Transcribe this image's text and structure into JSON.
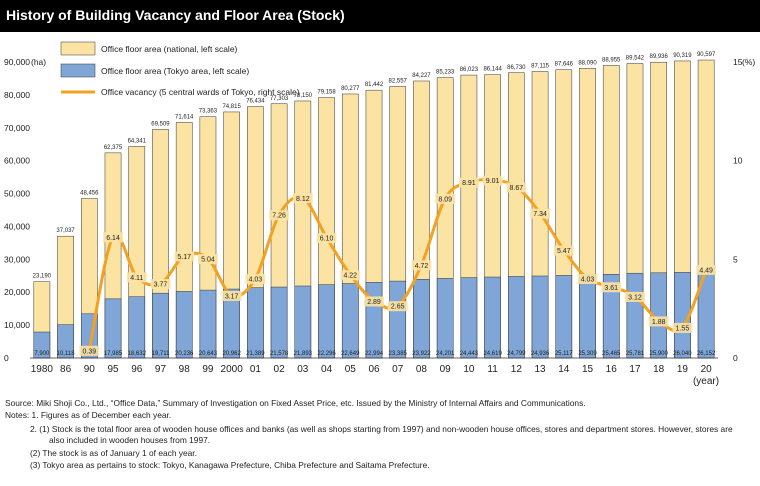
{
  "title": "History of Building Vacancy and Floor Area (Stock)",
  "chart_data": {
    "type": "bar",
    "left_unit": "(ha)",
    "right_unit": "(%)",
    "left_ticks": [
      "0",
      "10,000",
      "20,000",
      "30,000",
      "40,000",
      "50,000",
      "60,000",
      "70,000",
      "80,000",
      "90,000"
    ],
    "left_ylim": [
      0,
      90000
    ],
    "right_ticks": [
      "0",
      "5",
      "10",
      "15"
    ],
    "right_ylim": [
      0,
      15
    ],
    "categories": [
      "1980",
      "86",
      "90",
      "95",
      "96",
      "97",
      "98",
      "99",
      "2000",
      "01",
      "02",
      "03",
      "04",
      "05",
      "06",
      "07",
      "08",
      "09",
      "10",
      "11",
      "12",
      "13",
      "14",
      "15",
      "16",
      "17",
      "18",
      "19",
      "20"
    ],
    "x_unit": "(year)",
    "series": [
      {
        "name": "Office floor area (national, left scale)",
        "color": "#FBE3A4",
        "values": [
          23190,
          37037,
          48456,
          62375,
          64341,
          69509,
          71614,
          73363,
          74815,
          76434,
          77303,
          78150,
          79158,
          80277,
          81442,
          82557,
          84227,
          85233,
          86023,
          86144,
          86730,
          87115,
          87646,
          88090,
          88955,
          89542,
          89936,
          90319,
          90597
        ]
      },
      {
        "name": "Office floor area (Tokyo area, left scale)",
        "color": "#80A6D8",
        "values": [
          7900,
          10118,
          13444,
          17985,
          18632,
          19711,
          20236,
          20643,
          20962,
          21389,
          21578,
          21893,
          22296,
          22649,
          22994,
          23385,
          23922,
          24201,
          24443,
          24619,
          24799,
          24936,
          25117,
          25309,
          25465,
          25781,
          25900,
          26040,
          26152
        ]
      },
      {
        "name": "Office vacancy (5 central wards of Tokyo, right scale)",
        "color": "#F4A11F",
        "values": [
          null,
          null,
          0.39,
          6.14,
          4.11,
          3.77,
          5.17,
          5.04,
          3.17,
          4.03,
          7.26,
          8.12,
          6.1,
          4.22,
          2.89,
          2.65,
          4.72,
          8.09,
          8.91,
          9.01,
          8.67,
          7.34,
          5.47,
          4.03,
          3.61,
          3.12,
          1.88,
          1.55,
          4.49
        ],
        "labels": [
          "",
          "",
          "0.39",
          "6.14",
          "4.11",
          "3.77",
          "5.17",
          "5.04",
          "3.17",
          "4.03",
          "7.26",
          "8.12",
          "6.10",
          "4.22",
          "2.89",
          "2.65",
          "4.72",
          "8.09",
          "8.91",
          "9.01",
          "8.67",
          "7.34",
          "5.47",
          "4.03",
          "3.61",
          "3.12",
          "1.88",
          "1.55",
          "4.49"
        ]
      }
    ],
    "national_labels": [
      "23,190",
      "37,037",
      "48,456",
      "62,375",
      "64,341",
      "69,509",
      "71,614",
      "73,363",
      "74,815",
      "76,434",
      "77,303",
      "78,150",
      "79,158",
      "80,277",
      "81,442",
      "82,557",
      "84,227",
      "85,233",
      "86,023",
      "86,144",
      "86,730",
      "87,115",
      "87,646",
      "88,090",
      "88,955",
      "89,542",
      "89,936",
      "90,319",
      "90,597"
    ],
    "tokyo_labels": [
      "7,900",
      "10,118",
      "13,444",
      "17,985",
      "18,632",
      "19,711",
      "20,236",
      "20,643",
      "20,962",
      "21,389",
      "21,578",
      "21,893",
      "22,296",
      "22,649",
      "22,994",
      "23,385",
      "23,922",
      "24,201",
      "24,443",
      "24,619",
      "24,799",
      "24,936",
      "25,117",
      "25,309",
      "25,465",
      "25,781",
      "25,900",
      "26,040",
      "26,152"
    ],
    "legend_position": "top-left"
  },
  "source": "Source: Miki Shoji Co., Ltd., “Office Data,” Summary of Investigation on Fixed Asset Price, etc. Issued by the Ministry of Internal Affairs and Communications.",
  "notes": [
    "Notes: 1. Figures as of December each year.",
    "2. (1) Stock is the total floor area of wooden house offices and banks (as well as shops starting from 1997) and non-wooden house offices, stores and department stores. However, stores are",
    "also included in wooden houses from 1997.",
    "(2) The stock is as of January 1 of each year.",
    "(3) Tokyo area as pertains to stock: Tokyo, Kanagawa Prefecture, Chiba Prefecture and Saitama Prefecture."
  ]
}
